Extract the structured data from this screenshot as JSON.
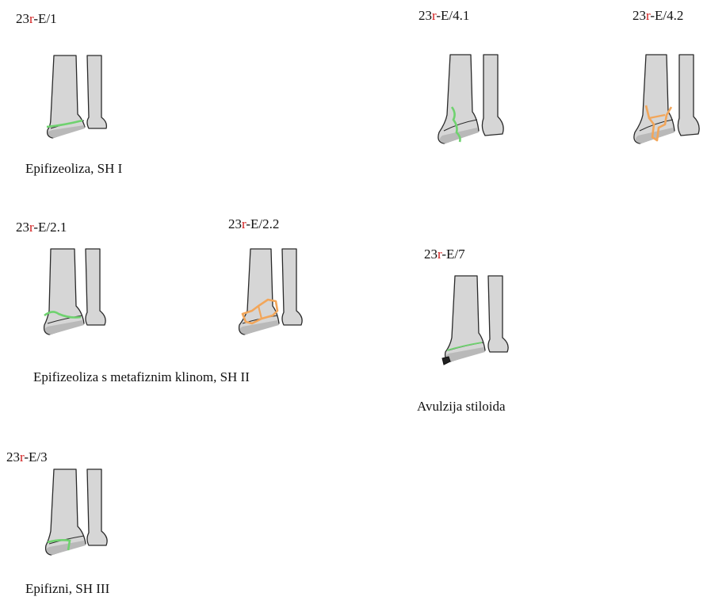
{
  "codes": {
    "e1": {
      "prefix": "23",
      "r": "r",
      "suffix": "-E/1"
    },
    "e21": {
      "prefix": "23",
      "r": "r",
      "suffix": "-E/2.1"
    },
    "e22": {
      "prefix": "23",
      "r": "r",
      "suffix": "-E/2.2"
    },
    "e3": {
      "prefix": "23",
      "r": "r",
      "suffix": "-E/3"
    },
    "e41": {
      "prefix": "23",
      "r": "r",
      "suffix": "-E/4.1"
    },
    "e42": {
      "prefix": "23",
      "r": "r",
      "suffix": "-E/4.2"
    },
    "e7": {
      "prefix": "23",
      "r": "r",
      "suffix": "-E/7"
    }
  },
  "captions": {
    "sh1": "Epifizeoliza, SH I",
    "sh2": "Epifizeoliza s metafiznim klinom, SH II",
    "sh3": "Epifizni, SH III",
    "avulsion": "Avulzija stiloida"
  },
  "colors": {
    "code_accent": "#d11a1a",
    "fracture_green": "#6fd26f",
    "fracture_orange": "#f2a65a",
    "bone_fill": "#d6d6d6",
    "avulsion_fragment": "#222222"
  }
}
